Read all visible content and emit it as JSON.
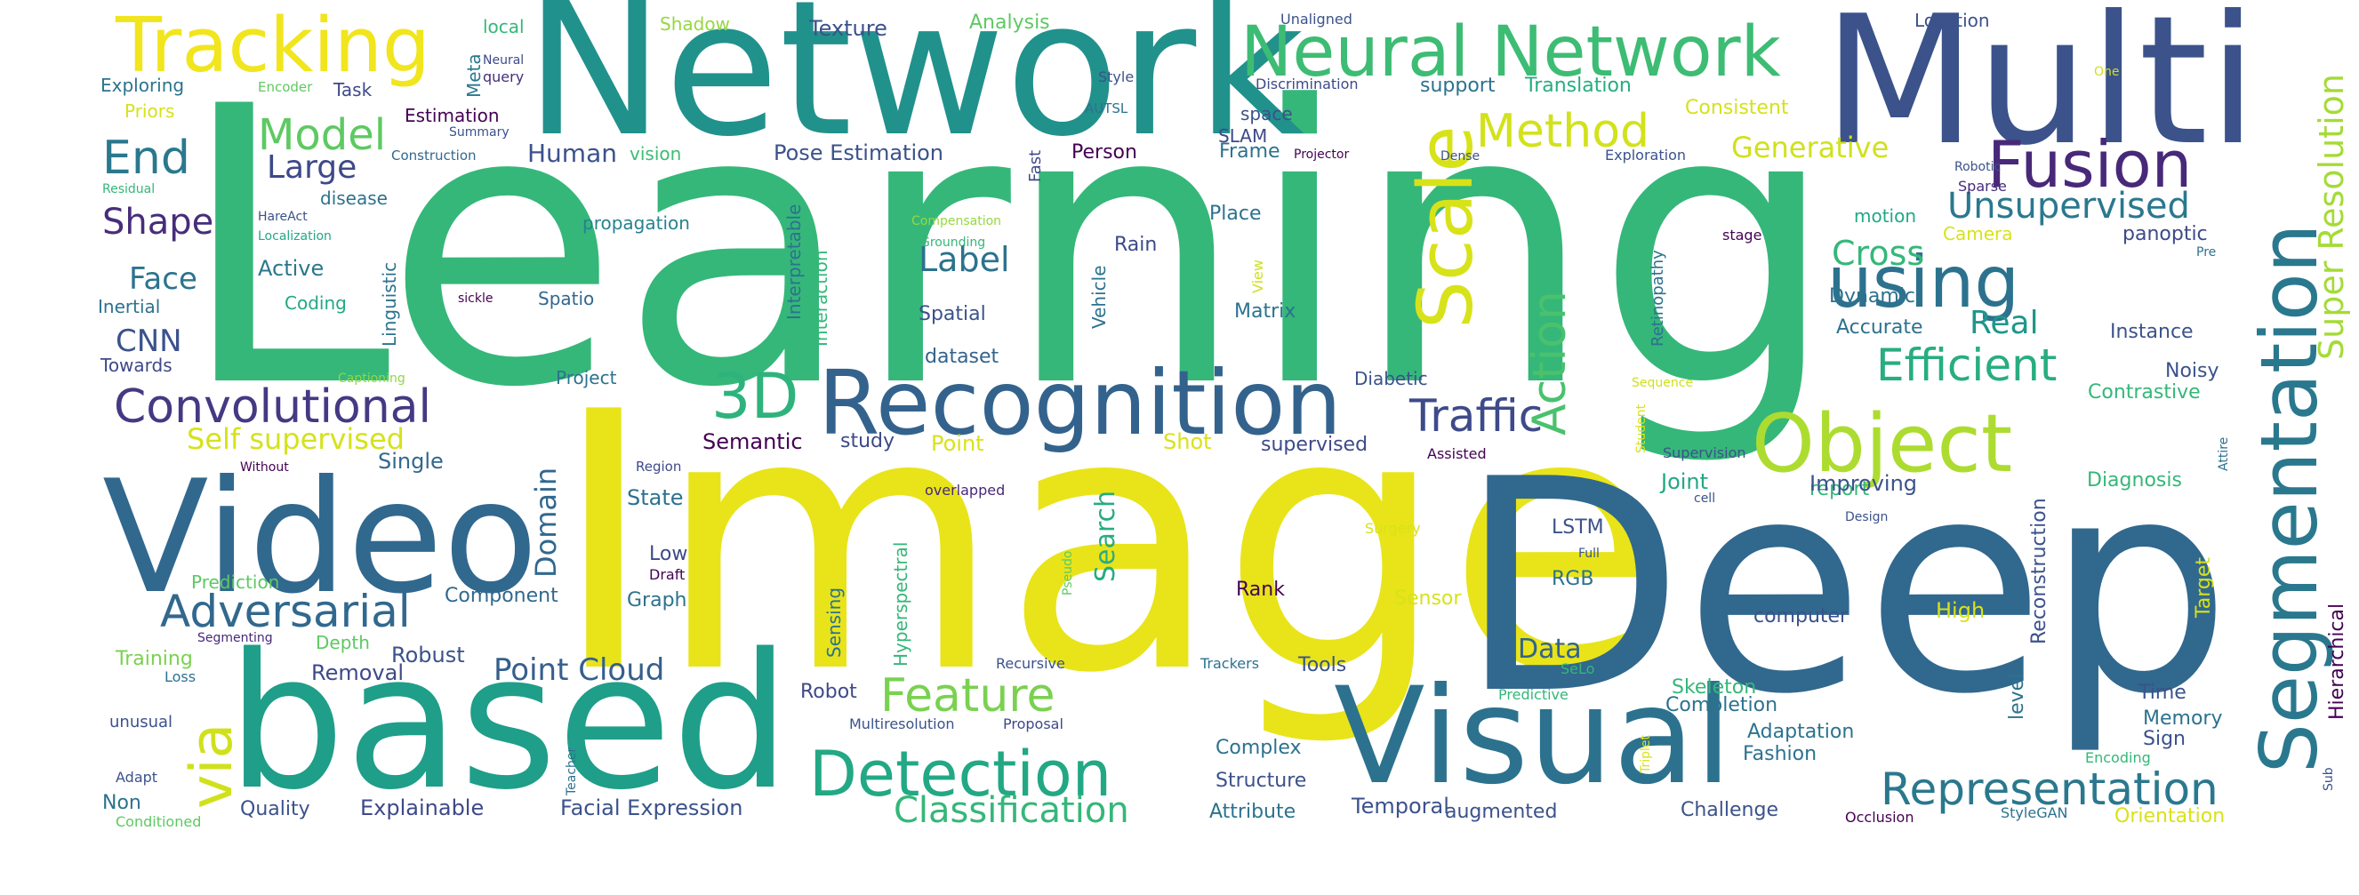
{
  "words": [
    {
      "text": "Learning",
      "color": "#35b779"
    },
    {
      "text": "Image",
      "color": "#e8e419"
    },
    {
      "text": "Deep",
      "color": "#31688e"
    },
    {
      "text": "Network",
      "color": "#21918c"
    },
    {
      "text": "Multi",
      "color": "#3b528b"
    },
    {
      "text": "based",
      "color": "#1f9e89"
    },
    {
      "text": "Video",
      "color": "#31688e"
    },
    {
      "text": "Visual",
      "color": "#2c728e"
    },
    {
      "text": "Recognition",
      "color": "#33638d"
    },
    {
      "text": "Tracking",
      "color": "#f1e51d"
    },
    {
      "text": "Neural Network",
      "color": "#3dbc74"
    },
    {
      "text": "Segmentation",
      "color": "#2a788e"
    },
    {
      "text": "Object",
      "color": "#addc30"
    },
    {
      "text": "Fusion",
      "color": "#482878"
    },
    {
      "text": "Scale",
      "color": "#d8e219"
    },
    {
      "text": "using",
      "color": "#2c728e"
    },
    {
      "text": "Detection",
      "color": "#22a884"
    },
    {
      "text": "Convolutional",
      "color": "#443983"
    },
    {
      "text": "Adversarial",
      "color": "#31688e"
    },
    {
      "text": "3D",
      "color": "#2eb37c"
    },
    {
      "text": "Representation",
      "color": "#2a788e"
    },
    {
      "text": "via",
      "color": "#d0e11c"
    },
    {
      "text": "Action",
      "color": "#4ac16d"
    },
    {
      "text": "Traffic",
      "color": "#3e4a89"
    },
    {
      "text": "Efficient",
      "color": "#27ad81"
    },
    {
      "text": "Method",
      "color": "#d2e21b"
    },
    {
      "text": "Model",
      "color": "#5ec962"
    },
    {
      "text": "Feature",
      "color": "#7ad151"
    },
    {
      "text": "Classification",
      "color": "#35b779"
    },
    {
      "text": "End",
      "color": "#2a788e"
    },
    {
      "text": "Unsupervised",
      "color": "#2a788e"
    },
    {
      "text": "Super Resolution",
      "color": "#a5db36"
    },
    {
      "text": "Point Cloud",
      "color": "#355f8d"
    },
    {
      "text": "Large",
      "color": "#3e4989"
    },
    {
      "text": "Shape",
      "color": "#472d7b"
    },
    {
      "text": "Face",
      "color": "#2c738e"
    },
    {
      "text": "CNN",
      "color": "#3b528b"
    },
    {
      "text": "Label",
      "color": "#2c728e"
    },
    {
      "text": "Cross",
      "color": "#35b779"
    },
    {
      "text": "Real",
      "color": "#1f968b"
    },
    {
      "text": "Generative",
      "color": "#d0e11c"
    },
    {
      "text": "Self supervised",
      "color": "#d5e21a"
    },
    {
      "text": "Human",
      "color": "#3b528b"
    },
    {
      "text": "Domain",
      "color": "#31688e"
    },
    {
      "text": "Search",
      "color": "#26ad81"
    },
    {
      "text": "Data",
      "color": "#33638d"
    },
    {
      "text": "Semantic",
      "color": "#440154"
    },
    {
      "text": "Pose Estimation",
      "color": "#3b528b"
    },
    {
      "text": "Explainable",
      "color": "#3e4989"
    },
    {
      "text": "Facial Expression",
      "color": "#3b528b"
    },
    {
      "text": "Analysis",
      "color": "#5ec962"
    },
    {
      "text": "Texture",
      "color": "#3b528b"
    },
    {
      "text": "Shadow",
      "color": "#95d840"
    },
    {
      "text": "local",
      "color": "#35b779"
    },
    {
      "text": "Meta",
      "color": "#2a788e"
    },
    {
      "text": "Neural",
      "color": "#3e4a89"
    },
    {
      "text": "query",
      "color": "#472d7b"
    },
    {
      "text": "Exploring",
      "color": "#2c738e"
    },
    {
      "text": "Encoder",
      "color": "#5ec962"
    },
    {
      "text": "Task",
      "color": "#3e4989"
    },
    {
      "text": "Priors",
      "color": "#d5e21a"
    },
    {
      "text": "Estimation",
      "color": "#440154"
    },
    {
      "text": "Summary",
      "color": "#3b528b"
    },
    {
      "text": "Construction",
      "color": "#31688e"
    },
    {
      "text": "vision",
      "color": "#3dbc74"
    },
    {
      "text": "Residual",
      "color": "#35b779"
    },
    {
      "text": "disease",
      "color": "#2c728e"
    },
    {
      "text": "HareAct",
      "color": "#3b528b"
    },
    {
      "text": "Localization",
      "color": "#22a884"
    },
    {
      "text": "Active",
      "color": "#2a788e"
    },
    {
      "text": "Coding",
      "color": "#22a884"
    },
    {
      "text": "Inertial",
      "color": "#2c728e"
    },
    {
      "text": "Towards",
      "color": "#3e4989"
    },
    {
      "text": "Linguistic",
      "color": "#2c728e"
    },
    {
      "text": "sickle",
      "color": "#440154"
    },
    {
      "text": "Spatio",
      "color": "#31688e"
    },
    {
      "text": "propagation",
      "color": "#26828e"
    },
    {
      "text": "Captioning",
      "color": "#8fd744"
    },
    {
      "text": "Project",
      "color": "#2c728e"
    },
    {
      "text": "Single",
      "color": "#31688e"
    },
    {
      "text": "Without",
      "color": "#440154"
    },
    {
      "text": "Region",
      "color": "#3e4989"
    },
    {
      "text": "State",
      "color": "#2c728e"
    },
    {
      "text": "Low",
      "color": "#3e4989"
    },
    {
      "text": "Draft",
      "color": "#440154"
    },
    {
      "text": "Prediction",
      "color": "#5ec962"
    },
    {
      "text": "Component",
      "color": "#31688e"
    },
    {
      "text": "Graph",
      "color": "#2c728e"
    },
    {
      "text": "Depth",
      "color": "#5ec962"
    },
    {
      "text": "Robust",
      "color": "#3b528b"
    },
    {
      "text": "Training",
      "color": "#7ad151"
    },
    {
      "text": "Loss",
      "color": "#2c728e"
    },
    {
      "text": "Segmenting",
      "color": "#482878"
    },
    {
      "text": "Removal",
      "color": "#3e4a89"
    },
    {
      "text": "unusual",
      "color": "#3b528b"
    },
    {
      "text": "Adapt",
      "color": "#3b528b"
    },
    {
      "text": "Non",
      "color": "#2c728e"
    },
    {
      "text": "Conditioned",
      "color": "#5ec962"
    },
    {
      "text": "Quality",
      "color": "#3b528b"
    },
    {
      "text": "Interpretable",
      "color": "#2c728e"
    },
    {
      "text": "Interaction",
      "color": "#35b779"
    },
    {
      "text": "Spatial",
      "color": "#3b528b"
    },
    {
      "text": "dataset",
      "color": "#33638d"
    },
    {
      "text": "study",
      "color": "#3e4989"
    },
    {
      "text": "Point",
      "color": "#d8e219"
    },
    {
      "text": "Hyperspectral",
      "color": "#35b779"
    },
    {
      "text": "overlapped",
      "color": "#482878"
    },
    {
      "text": "Sensing",
      "color": "#2c728e"
    },
    {
      "text": "Robot",
      "color": "#3e4989"
    },
    {
      "text": "Multiresolution",
      "color": "#3b528b"
    },
    {
      "text": "Proposal",
      "color": "#3e4989"
    },
    {
      "text": "Fast",
      "color": "#3e4989"
    },
    {
      "text": "Person",
      "color": "#440154"
    },
    {
      "text": "Frame",
      "color": "#2c728e"
    },
    {
      "text": "Compensation",
      "color": "#95d840"
    },
    {
      "text": "Grounding",
      "color": "#35b779"
    },
    {
      "text": "Vehicle",
      "color": "#2c728e"
    },
    {
      "text": "Rain",
      "color": "#3e4989"
    },
    {
      "text": "View",
      "color": "#cde11d"
    },
    {
      "text": "Shot",
      "color": "#d8e219"
    },
    {
      "text": "Pseudo",
      "color": "#5ec962"
    },
    {
      "text": "Trackers",
      "color": "#2c728e"
    },
    {
      "text": "Recursive",
      "color": "#3b528b"
    },
    {
      "text": "Complex",
      "color": "#2c728e"
    },
    {
      "text": "Structure",
      "color": "#3b528b"
    },
    {
      "text": "Attribute",
      "color": "#2c728e"
    },
    {
      "text": "Rank",
      "color": "#440154"
    },
    {
      "text": "supervised",
      "color": "#3e4989"
    },
    {
      "text": "Matrix",
      "color": "#2c728e"
    },
    {
      "text": "Place",
      "color": "#2c728e"
    },
    {
      "text": "Diabetic",
      "color": "#3b528b"
    },
    {
      "text": "Tools",
      "color": "#3b528b"
    },
    {
      "text": "Temporal",
      "color": "#3b528b"
    },
    {
      "text": "augmented",
      "color": "#3b528b"
    },
    {
      "text": "Unaligned",
      "color": "#3b528b"
    },
    {
      "text": "Style",
      "color": "#3b528b"
    },
    {
      "text": "AUTSL",
      "color": "#2c728e"
    },
    {
      "text": "Discrimination",
      "color": "#3e4989"
    },
    {
      "text": "space",
      "color": "#3b528b"
    },
    {
      "text": "SLAM",
      "color": "#3e4989"
    },
    {
      "text": "Projector",
      "color": "#440154"
    },
    {
      "text": "support",
      "color": "#2c728e"
    },
    {
      "text": "Translation",
      "color": "#26ad81"
    },
    {
      "text": "Consistent",
      "color": "#d5e21a"
    },
    {
      "text": "Dense",
      "color": "#3b528b"
    },
    {
      "text": "Exploration",
      "color": "#3b528b"
    },
    {
      "text": "Retinopathy",
      "color": "#2c728e"
    },
    {
      "text": "Surgery",
      "color": "#d8e219"
    },
    {
      "text": "Sensor",
      "color": "#d8e219"
    },
    {
      "text": "LSTM",
      "color": "#3b528b"
    },
    {
      "text": "RGB",
      "color": "#2c728e"
    },
    {
      "text": "Assisted",
      "color": "#440154"
    },
    {
      "text": "Student",
      "color": "#d8e219"
    },
    {
      "text": "Sequence",
      "color": "#cde11d"
    },
    {
      "text": "Location",
      "color": "#3b528b"
    },
    {
      "text": "One",
      "color": "#cde11d"
    },
    {
      "text": "Robotic",
      "color": "#3b528b"
    },
    {
      "text": "Sparse",
      "color": "#472d7b"
    },
    {
      "text": "stage",
      "color": "#440154"
    },
    {
      "text": "motion",
      "color": "#22a884"
    },
    {
      "text": "Camera",
      "color": "#d8e219"
    },
    {
      "text": "panoptic",
      "color": "#3e4989"
    },
    {
      "text": "Pre",
      "color": "#2c728e"
    },
    {
      "text": "Dynamic",
      "color": "#2c728e"
    },
    {
      "text": "Accurate",
      "color": "#2c728e"
    },
    {
      "text": "Instance",
      "color": "#3b528b"
    },
    {
      "text": "Noisy",
      "color": "#3b528b"
    },
    {
      "text": "Contrastive",
      "color": "#35b779"
    },
    {
      "text": "Attire",
      "color": "#2c728e"
    },
    {
      "text": "Supervision",
      "color": "#3b528b"
    },
    {
      "text": "report",
      "color": "#35b779"
    },
    {
      "text": "Joint",
      "color": "#22a884"
    },
    {
      "text": "cell",
      "color": "#3b528b"
    },
    {
      "text": "Improving",
      "color": "#3b528b"
    },
    {
      "text": "Diagnosis",
      "color": "#35b779"
    },
    {
      "text": "Design",
      "color": "#3b528b"
    },
    {
      "text": "Full",
      "color": "#3b528b"
    },
    {
      "text": "Reconstruction",
      "color": "#3b528b"
    },
    {
      "text": "Target",
      "color": "#d8e219"
    },
    {
      "text": "Hierarchical",
      "color": "#440154"
    },
    {
      "text": "computer",
      "color": "#3b528b"
    },
    {
      "text": "High",
      "color": "#d8e219"
    },
    {
      "text": "level",
      "color": "#2c728e"
    },
    {
      "text": "SeLo",
      "color": "#35b779"
    },
    {
      "text": "Predictive",
      "color": "#35b779"
    },
    {
      "text": "Skeleton",
      "color": "#35b779"
    },
    {
      "text": "Triplet",
      "color": "#d8e219"
    },
    {
      "text": "Completion",
      "color": "#2c728e"
    },
    {
      "text": "Adaptation",
      "color": "#2c728e"
    },
    {
      "text": "Fashion",
      "color": "#2c728e"
    },
    {
      "text": "Encoding",
      "color": "#35b779"
    },
    {
      "text": "Time",
      "color": "#3b528b"
    },
    {
      "text": "Memory",
      "color": "#2c728e"
    },
    {
      "text": "Sign",
      "color": "#3b528b"
    },
    {
      "text": "Sub",
      "color": "#3b528b"
    },
    {
      "text": "Challenge",
      "color": "#3b528b"
    },
    {
      "text": "Occlusion",
      "color": "#440154"
    },
    {
      "text": "StyleGAN",
      "color": "#2c728e"
    },
    {
      "text": "Orientation",
      "color": "#d8e219"
    },
    {
      "text": "Teacher",
      "color": "#2c728e"
    }
  ]
}
